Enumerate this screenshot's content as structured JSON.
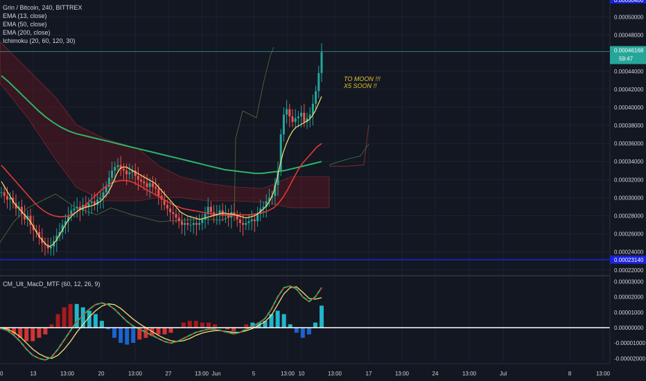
{
  "legend": {
    "title": "Grin / Bitcoin, 240, BITTREX",
    "ema13": "EMA (13, close)",
    "ema50": "EMA (50, close)",
    "ema200": "EMA (200, close)",
    "ichimoku": "Ichimoku (20, 60, 120, 30)"
  },
  "macd_legend": "CM_Ult_MacD_MTF (60, 12, 26, 9)",
  "annotation": {
    "line1": "TO MOON !!!",
    "line2": "X5 SOON !!"
  },
  "price_axis": {
    "top_label": "0.00050400",
    "ticks": [
      "0.00050000",
      "0.00048000",
      "0.00044000",
      "0.00042000",
      "0.00040000",
      "0.00038000",
      "0.00036000",
      "0.00034000",
      "0.00032000",
      "0.00030000",
      "0.00028000",
      "0.00026000",
      "0.00024000",
      "0.00022000"
    ],
    "current_price": "0.00046168",
    "countdown": "59:47",
    "hline_label": "0.00023140"
  },
  "macd_axis": {
    "ticks": [
      "0.00003000",
      "0.00002000",
      "0.00001000",
      "0.00000000",
      "-0.00001000",
      "-0.00002000"
    ]
  },
  "time_axis": [
    "00",
    "13",
    "13:00",
    "20",
    "13:00",
    "27",
    "13:00",
    "Jun",
    "5",
    "13:00",
    "10",
    "13:00",
    "17",
    "13:00",
    "24",
    "13:00",
    "Jul",
    "8",
    "13:00"
  ],
  "colors": {
    "background": "#131722",
    "grid": "#1e2230",
    "up": "#26a69a",
    "down": "#ef5350",
    "ema13": "#f5e275",
    "ema50": "#e53935",
    "ema200": "#2fb36a",
    "hline": "#1a22d8",
    "annotation": "#e6c229"
  },
  "chart_data": {
    "type": "candlestick",
    "title": "Grin / Bitcoin, 240, BITTREX",
    "price_ylim": [
      0.000216,
      0.000505
    ],
    "current_price": 0.00046168,
    "horizontal_line": 0.0002314,
    "close_series": [
      0.000306,
      0.000302,
      0.000298,
      0.0003,
      0.000294,
      0.000288,
      0.00029,
      0.000282,
      0.000276,
      0.00028,
      0.00027,
      0.000264,
      0.000262,
      0.000256,
      0.00025,
      0.000248,
      0.000244,
      0.000246,
      0.000252,
      0.000258,
      0.000262,
      0.00027,
      0.000274,
      0.00028,
      0.000286,
      0.000288,
      0.00029,
      0.000286,
      0.000292,
      0.00029,
      0.000294,
      0.000296,
      0.000292,
      0.000298,
      0.0003,
      0.000306,
      0.000312,
      0.000322,
      0.00033,
      0.000334,
      0.000336,
      0.000332,
      0.00033,
      0.000326,
      0.000328,
      0.00033,
      0.000324,
      0.00032,
      0.000318,
      0.000316,
      0.000312,
      0.000316,
      0.000312,
      0.00031,
      0.000302,
      0.000298,
      0.000292,
      0.000288,
      0.000284,
      0.000282,
      0.000278,
      0.000274,
      0.00027,
      0.000272,
      0.00027,
      0.00027,
      0.000272,
      0.00027,
      0.000272,
      0.000276,
      0.000282,
      0.00029,
      0.000284,
      0.00028,
      0.000282,
      0.000286,
      0.00028,
      0.000282,
      0.000278,
      0.000284,
      0.00028,
      0.000276,
      0.000272,
      0.00027,
      0.000272,
      0.000274,
      0.000276,
      0.000274,
      0.000282,
      0.000288,
      0.00029,
      0.000296,
      0.0003,
      0.000302,
      0.000314,
      0.00033,
      0.00037,
      0.000392,
      0.000398,
      0.00039,
      0.000384,
      0.000388,
      0.00039,
      0.000394,
      0.000384,
      0.000388,
      0.000392,
      0.000404,
      0.000418,
      0.000438,
      0.000461
    ],
    "ema13": [
      0.000318,
      0.000312,
      0.000306,
      0.0003,
      0.000294,
      0.00029,
      0.000286,
      0.000282,
      0.000278,
      0.000274,
      0.000268,
      0.000262,
      0.000256,
      0.000252,
      0.000248,
      0.000246,
      0.000248,
      0.000252,
      0.000258,
      0.000264,
      0.00027,
      0.000276,
      0.00028,
      0.000283,
      0.000286,
      0.000288,
      0.000289,
      0.00029,
      0.000291,
      0.000292,
      0.000294,
      0.000296,
      0.0003,
      0.000304,
      0.00031,
      0.000318,
      0.000326,
      0.000332,
      0.000334,
      0.000334,
      0.000332,
      0.00033,
      0.000328,
      0.000326,
      0.000324,
      0.000322,
      0.00032,
      0.000318,
      0.000316,
      0.000312,
      0.000308,
      0.000304,
      0.0003,
      0.000296,
      0.000292,
      0.000288,
      0.000284,
      0.000282,
      0.00028,
      0.000279,
      0.000278,
      0.000277,
      0.000276,
      0.000277,
      0.000278,
      0.000279,
      0.00028,
      0.000281,
      0.000282,
      0.000283,
      0.000283,
      0.000282,
      0.000282,
      0.000281,
      0.00028,
      0.000279,
      0.000278,
      0.000278,
      0.000279,
      0.00028,
      0.000282,
      0.000285,
      0.000288,
      0.000292,
      0.000298,
      0.000306,
      0.00032,
      0.000336,
      0.00035,
      0.00036,
      0.000368,
      0.000374,
      0.000378,
      0.00038,
      0.000382,
      0.000384,
      0.000386,
      0.00039,
      0.000396,
      0.000404,
      0.000412
    ],
    "ema50": [
      0.000336,
      0.00033,
      0.000324,
      0.000318,
      0.000312,
      0.000306,
      0.0003,
      0.000294,
      0.000289,
      0.000285,
      0.000282,
      0.00028,
      0.000279,
      0.000279,
      0.00028,
      0.000282,
      0.000285,
      0.000289,
      0.000294,
      0.000299,
      0.000304,
      0.000309,
      0.000313,
      0.000316,
      0.000318,
      0.000319,
      0.000319,
      0.000318,
      0.000316,
      0.000313,
      0.00031,
      0.000307,
      0.000304,
      0.000301,
      0.000298,
      0.000295,
      0.000292,
      0.00029,
      0.000288,
      0.000287,
      0.000286,
      0.000285,
      0.000284,
      0.000283,
      0.000282,
      0.000282,
      0.000281,
      0.000281,
      0.000281,
      0.000281,
      0.000281,
      0.000281,
      0.000281,
      0.000282,
      0.000283,
      0.000284,
      0.000286,
      0.000289,
      0.000294,
      0.000301,
      0.00031,
      0.00032,
      0.00033,
      0.000338,
      0.000344,
      0.00035,
      0.000356,
      0.00036
    ],
    "ema200": [
      0.000435,
      0.000428,
      0.00042,
      0.000412,
      0.000404,
      0.000396,
      0.000389,
      0.000383,
      0.000378,
      0.000374,
      0.000371,
      0.000369,
      0.000367,
      0.000365,
      0.000363,
      0.000361,
      0.000359,
      0.000357,
      0.000355,
      0.000353,
      0.000351,
      0.000349,
      0.000347,
      0.000345,
      0.000343,
      0.000341,
      0.000339,
      0.000337,
      0.000335,
      0.000333,
      0.000331,
      0.00033,
      0.000329,
      0.000328,
      0.000327,
      0.000327,
      0.000328,
      0.000329,
      0.00033,
      0.000332,
      0.000334,
      0.000336,
      0.000338,
      0.00034
    ],
    "macd": [
      -5e-07,
      -2e-06,
      -5e-06,
      -9e-06,
      -1.4e-05,
      -1.8e-05,
      -2e-05,
      -2.1e-05,
      -1.9e-05,
      -1.4e-05,
      -8e-06,
      -2e-06,
      4e-06,
      8e-06,
      1.2e-05,
      1.5e-05,
      1.6e-05,
      1.5e-05,
      1.2e-05,
      8e-06,
      4e-06,
      1e-06,
      -1e-06,
      -3e-06,
      -5e-06,
      -7e-06,
      -9e-06,
      -1e-05,
      -9e-06,
      -7e-06,
      -5e-06,
      -3e-06,
      -2e-06,
      -1e-06,
      -1e-06,
      -2e-06,
      -3e-06,
      -4e-06,
      -3e-06,
      -1e-06,
      1e-06,
      3e-06,
      6e-06,
      1.2e-05,
      2e-05,
      2.6e-05,
      2.7e-05,
      2.5e-05,
      2e-05,
      1.7e-05,
      2e-05,
      2.6e-05
    ],
    "macd_signal": [
      0.0,
      -1e-06,
      -3e-06,
      -6e-06,
      -1e-05,
      -1.4e-05,
      -1.7e-05,
      -1.9e-05,
      -2e-05,
      -1.8e-05,
      -1.4e-05,
      -9e-06,
      -3e-06,
      2e-06,
      7e-06,
      1.1e-05,
      1.4e-05,
      1.55e-05,
      1.5e-05,
      1.25e-05,
      9e-06,
      5.5e-06,
      2.5e-06,
      0.0,
      -2.5e-06,
      -5e-06,
      -7e-06,
      -8.5e-06,
      -9e-06,
      -8.5e-06,
      -7e-06,
      -5e-06,
      -3.5e-06,
      -2.5e-06,
      -2e-06,
      -2e-06,
      -2.5e-06,
      -3e-06,
      -3e-06,
      -2e-06,
      -5e-07,
      1.5e-06,
      4e-06,
      8e-06,
      1.5e-05,
      2.2e-05,
      2.6e-05,
      2.65e-05,
      2.3e-05,
      1.9e-05,
      1.85e-05,
      1.95e-05
    ],
    "macd_ylim": [
      -2.25e-05,
      3.15e-05
    ]
  }
}
